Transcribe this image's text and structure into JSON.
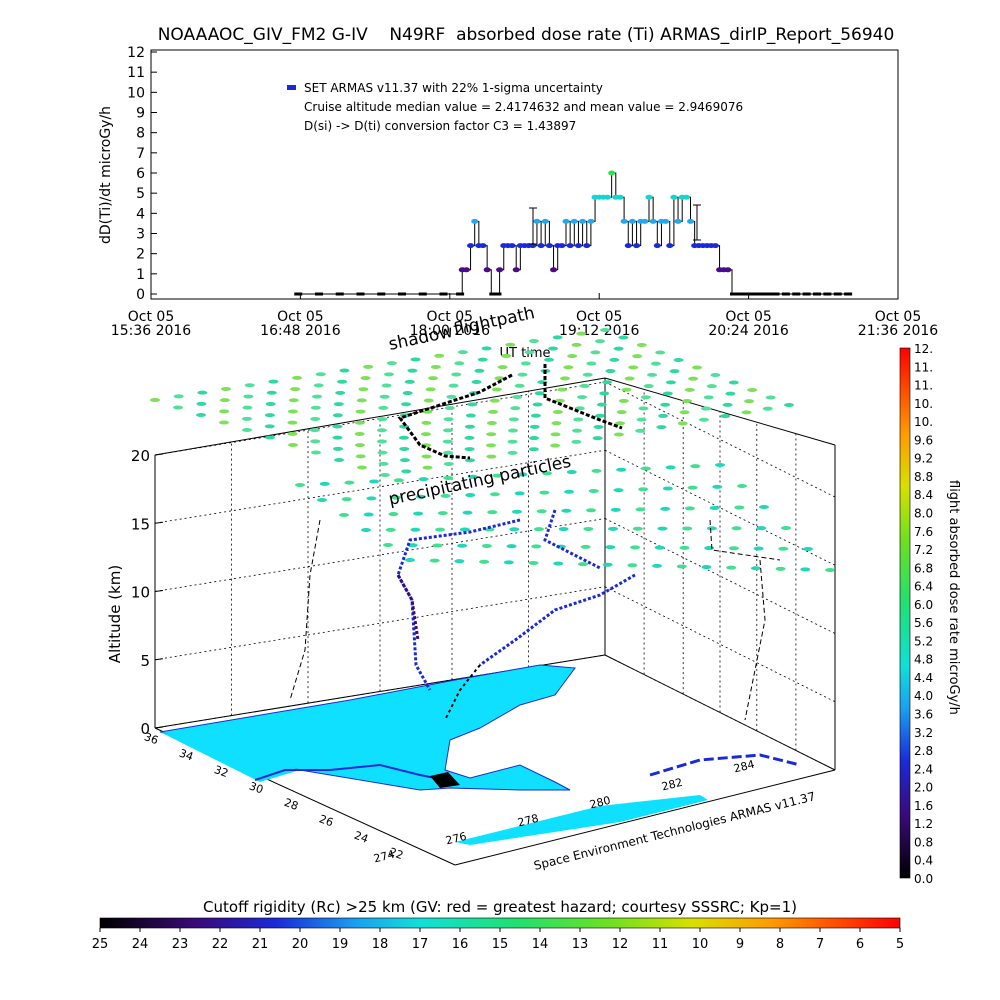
{
  "chart_data": [
    {
      "type": "line",
      "title": "NOAAAOC_GIV_FM2 G-IV    N49RF  absorbed dose rate (Ti) ARMAS_dirIP_Report_56940",
      "ylabel": "dD(Ti)/dt microGy/h",
      "xlabel": "UT time",
      "ylim": [
        0,
        12
      ],
      "yticks": [
        "0",
        "1",
        "2",
        "3",
        "4",
        "5",
        "6",
        "7",
        "8",
        "9",
        "10",
        "11",
        "12"
      ],
      "xticks": [
        {
          "t": 0,
          "l1": "Oct 05",
          "l2": "15:36 2016"
        },
        {
          "t": 72,
          "l1": "Oct 05",
          "l2": "16:48 2016"
        },
        {
          "t": 144,
          "l1": "Oct 05",
          "l2": "18:00 2016"
        },
        {
          "t": 216,
          "l1": "Oct 05",
          "l2": "19:12 2016"
        },
        {
          "t": 288,
          "l1": "Oct 05",
          "l2": "20:24 2016"
        },
        {
          "t": 360,
          "l1": "Oct 05",
          "l2": "21:36 2016"
        }
      ],
      "xlim_minutes": [
        0,
        360
      ],
      "legend": {
        "marker_label": "SET ARMAS v11.37 with 22% 1-sigma uncertainty",
        "line2": "Cruise altitude median value = 2.4174632 and mean value = 2.9469076",
        "line3": "D(si) -> D(ti) conversion factor C3 = 1.43897",
        "position": "top-left"
      },
      "x_minutes": [
        70,
        80,
        90,
        100,
        110,
        120,
        130,
        140,
        148,
        150,
        152,
        154,
        156,
        158,
        160,
        162,
        164,
        166,
        168,
        170,
        172,
        174,
        176,
        178,
        180,
        182,
        184,
        186,
        188,
        190,
        192,
        194,
        196,
        198,
        200,
        202,
        204,
        206,
        208,
        210,
        212,
        214,
        216,
        218,
        220,
        222,
        224,
        226,
        228,
        230,
        232,
        234,
        236,
        238,
        240,
        242,
        244,
        246,
        248,
        250,
        252,
        254,
        256,
        258,
        260,
        262,
        264,
        266,
        268,
        270,
        272,
        274,
        276,
        278,
        280,
        282,
        284,
        286,
        288,
        290,
        292,
        294,
        296,
        298,
        300,
        305,
        310,
        315,
        320,
        325,
        330,
        335
      ],
      "y_values": [
        0,
        0,
        0,
        0,
        0,
        0,
        0,
        0,
        0,
        1.2,
        1.2,
        2.4,
        3.6,
        2.4,
        2.4,
        1.2,
        0,
        0,
        1.2,
        2.4,
        2.4,
        2.4,
        1.2,
        2.4,
        2.4,
        2.4,
        2.4,
        3.6,
        2.4,
        3.6,
        2.4,
        1.2,
        2.4,
        2.4,
        3.6,
        2.4,
        3.6,
        2.4,
        3.6,
        2.4,
        3.6,
        4.8,
        4.8,
        4.8,
        4.8,
        6.0,
        4.8,
        4.8,
        3.6,
        2.4,
        3.6,
        2.4,
        3.6,
        3.6,
        4.8,
        3.6,
        2.4,
        3.6,
        3.6,
        2.4,
        4.8,
        3.6,
        4.8,
        4.8,
        3.6,
        2.4,
        2.4,
        2.4,
        2.4,
        2.4,
        2.4,
        1.2,
        1.2,
        1.2,
        0,
        0,
        0,
        0,
        0,
        0,
        0,
        0,
        0,
        0,
        0,
        0,
        0,
        0,
        0,
        0,
        0,
        0
      ]
    },
    {
      "type": "scatter",
      "title": "",
      "zlabel": "Altitude (km)",
      "zticks": [
        "0",
        "5",
        "10",
        "15",
        "20"
      ],
      "x_tick_labels": [
        "274",
        "276",
        "278",
        "280",
        "282",
        "284"
      ],
      "y_tick_labels": [
        "36",
        "34",
        "32",
        "30",
        "28",
        "26",
        "24",
        "22"
      ],
      "annotations": [
        "shadow",
        "flightpath",
        "precipitating particles"
      ],
      "credit": "Space Environment Technologies ARMAS v11.37",
      "colorbar": {
        "label": "flight absorbed dose rate microGy/h",
        "ticks": [
          "0.0",
          "0.4",
          "0.8",
          "1.2",
          "1.6",
          "2.0",
          "2.4",
          "2.8",
          "3.2",
          "3.6",
          "4.0",
          "4.4",
          "4.8",
          "5.2",
          "5.6",
          "6.0",
          "6.4",
          "6.8",
          "7.2",
          "7.6",
          "8.0",
          "8.4",
          "8.8",
          "9.2",
          "9.6",
          "10.",
          "10.",
          "11.",
          "11.",
          "12."
        ],
        "range": [
          0,
          12
        ]
      },
      "cutoff_bar": {
        "label": "Cutoff rigidity (Rc) >25 km (GV: red = greatest hazard; courtesy SSSRC; Kp=1)",
        "ticks": [
          "25",
          "24",
          "23",
          "22",
          "21",
          "20",
          "19",
          "18",
          "17",
          "16",
          "15",
          "14",
          "13",
          "12",
          "11",
          "10",
          "9",
          "8",
          "7",
          "6",
          "5"
        ]
      }
    }
  ]
}
